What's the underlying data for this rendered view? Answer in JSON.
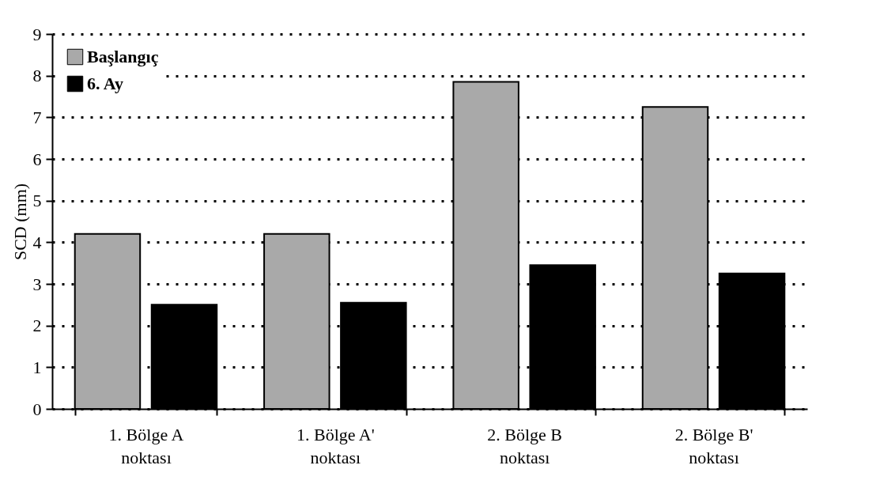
{
  "chart_data": {
    "type": "bar",
    "ylabel": "SCD (mm)",
    "categories": [
      "1. Bölge A noktası",
      "1. Bölge A' noktası",
      "2. Bölge B noktası",
      "2. Bölge B' noktası"
    ],
    "series": [
      {
        "name": "Başlangıç",
        "color": "#a9a9a9",
        "values": [
          4.2,
          4.2,
          7.85,
          7.25
        ]
      },
      {
        "name": "6. Ay",
        "color": "#000000",
        "values": [
          2.5,
          2.55,
          3.45,
          3.25
        ]
      }
    ],
    "ylim": [
      0,
      9
    ],
    "yticks": [
      0,
      1,
      2,
      3,
      4,
      5,
      6,
      7,
      8,
      9
    ],
    "grid": "y",
    "legend": "top left"
  }
}
